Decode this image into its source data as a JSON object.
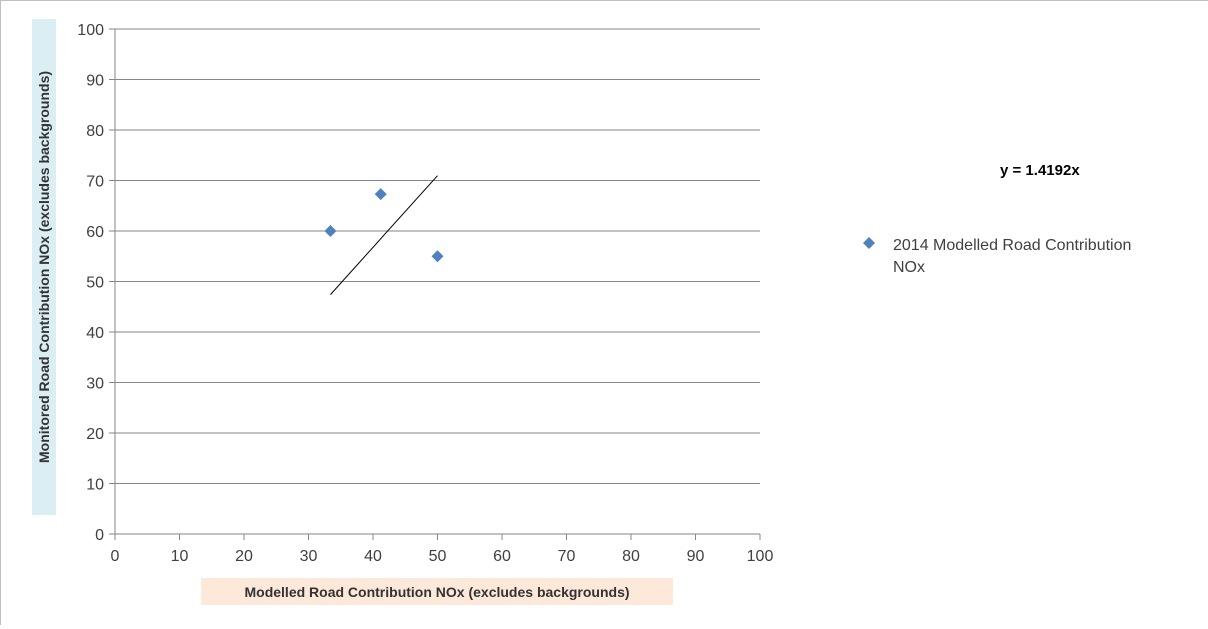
{
  "chart_data": {
    "type": "scatter",
    "xlabel": "Modelled Road Contribution NOx (excludes backgrounds)",
    "ylabel": "Monitored Road Contribution NOx (excludes backgrounds)",
    "xlim": [
      0,
      100
    ],
    "ylim": [
      0,
      100
    ],
    "x_ticks": [
      "0",
      "10",
      "20",
      "30",
      "40",
      "50",
      "60",
      "70",
      "80",
      "90",
      "100"
    ],
    "y_ticks": [
      "0",
      "10",
      "20",
      "30",
      "40",
      "50",
      "60",
      "70",
      "80",
      "90",
      "100"
    ],
    "grid": "horizontal",
    "legend_position": "right",
    "series": [
      {
        "name": "2014 Modelled Road Contribution NOx",
        "marker": "diamond",
        "color": "#4f81bd",
        "x": [
          33.4,
          41.2,
          50.0
        ],
        "y": [
          60.0,
          67.3,
          55.0
        ]
      }
    ],
    "trendline": {
      "equation": "y = 1.4192x",
      "slope": 1.4192,
      "x_range": [
        33.4,
        50.0
      ],
      "color": "#000000"
    },
    "colors": {
      "ylabel_background": "#dbeef4",
      "xlabel_background": "#fde9d9",
      "grid": "#868686",
      "axis": "#868686"
    }
  }
}
